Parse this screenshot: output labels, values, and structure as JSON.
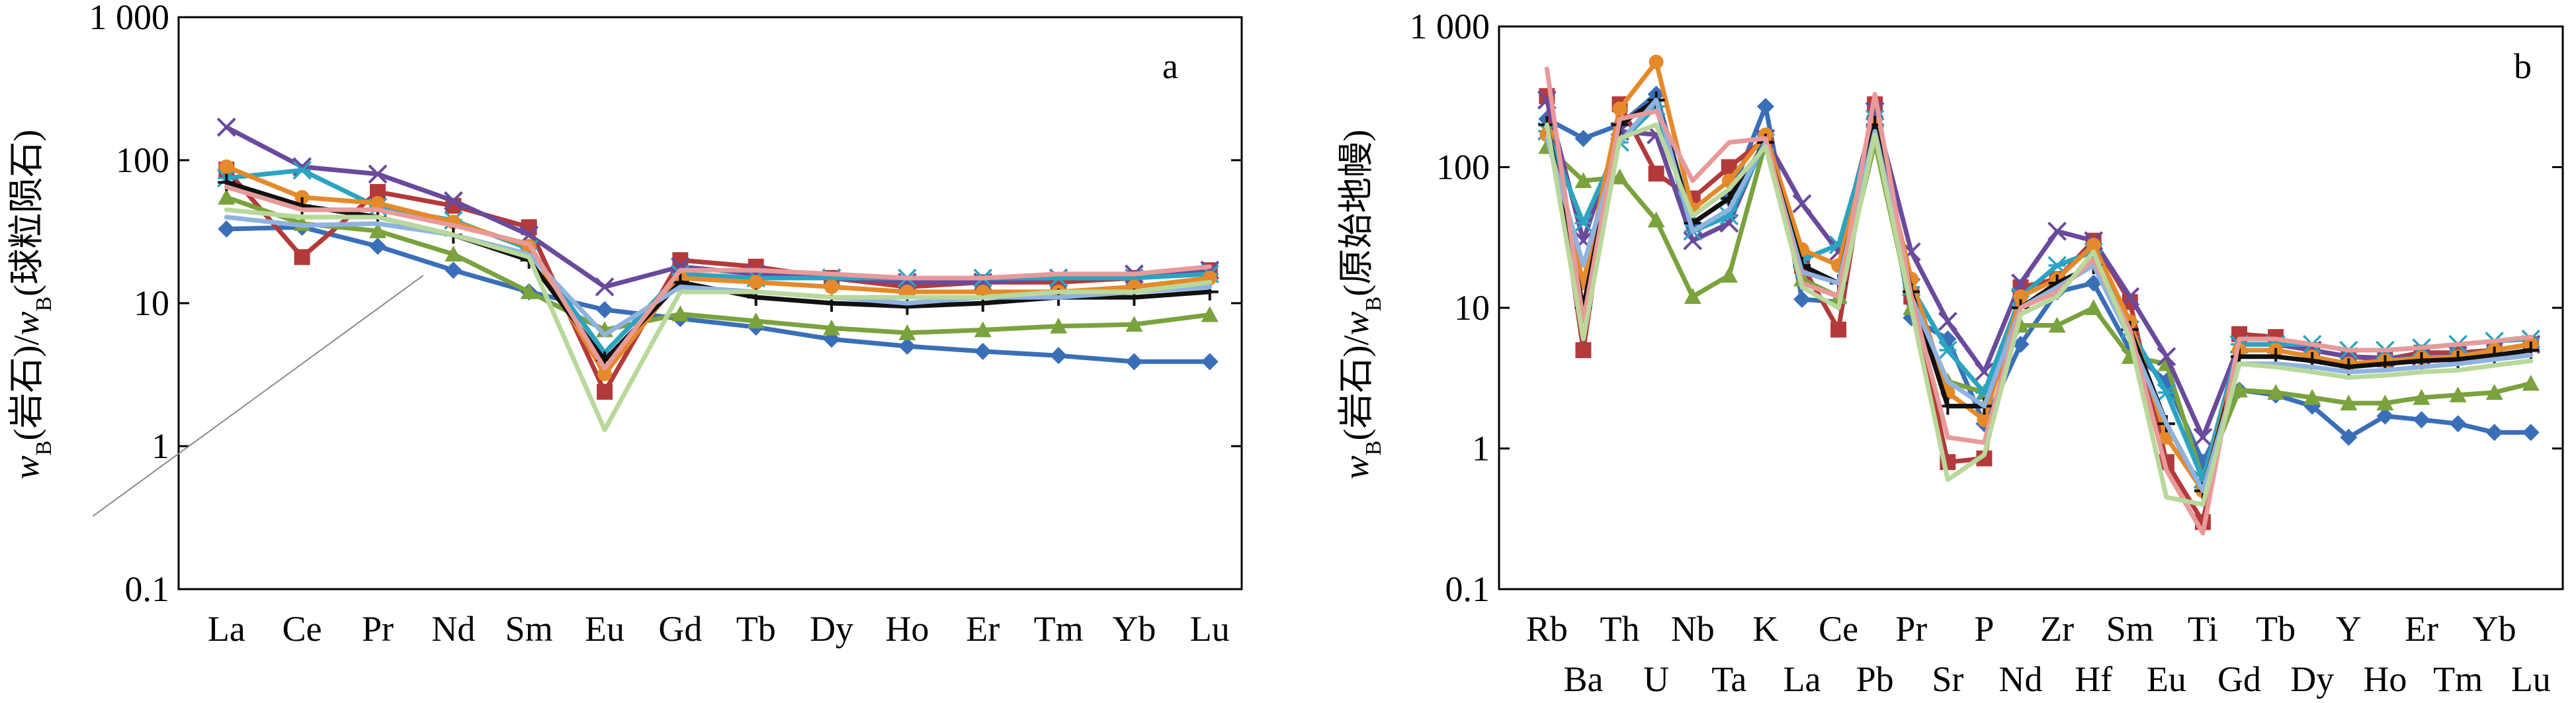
{
  "chart_data": [
    {
      "type": "line",
      "panel": "a",
      "title": "",
      "xlabel": "",
      "ylabel": "w(岩石)/w(球粒陨石)",
      "ylabel_parts": {
        "w1": "w",
        "s1": "B",
        "t1": "(岩石)/",
        "w2": "w",
        "s2": "B",
        "t2": "(球粒陨石)"
      },
      "yscale": "log",
      "ylim": [
        0.1,
        1000
      ],
      "yticks": [
        "0.1",
        "1",
        "10",
        "100",
        "1 000"
      ],
      "categories": [
        "La",
        "Ce",
        "Pr",
        "Nd",
        "Sm",
        "Eu",
        "Gd",
        "Tb",
        "Dy",
        "Ho",
        "Er",
        "Tm",
        "Yb",
        "Lu"
      ],
      "series": [
        {
          "name": "s1",
          "color": "#3a6fb7",
          "marker": "diamond",
          "values": [
            33,
            34,
            25,
            17,
            12,
            9,
            7.8,
            6.8,
            5.6,
            5,
            4.6,
            4.3,
            3.9,
            3.9
          ]
        },
        {
          "name": "s2",
          "color": "#b33a3a",
          "marker": "square",
          "values": [
            86,
            21,
            60,
            48,
            34,
            2.4,
            20,
            18,
            15,
            13,
            14,
            14,
            15,
            17
          ]
        },
        {
          "name": "s3",
          "color": "#7aa23d",
          "marker": "triangle",
          "values": [
            55,
            36,
            32,
            22,
            12,
            6.5,
            8.4,
            7.5,
            6.7,
            6.2,
            6.5,
            6.9,
            7.1,
            8.3
          ]
        },
        {
          "name": "s4",
          "color": "#6a4a9c",
          "marker": "x",
          "values": [
            170,
            90,
            80,
            52,
            30,
            13,
            18,
            16,
            15,
            14,
            14,
            15,
            16,
            17
          ]
        },
        {
          "name": "s5",
          "color": "#2aa4c0",
          "marker": "asterisk",
          "values": [
            75,
            85,
            47,
            38,
            24,
            4.5,
            16,
            15,
            15,
            15,
            15,
            15,
            15,
            16
          ]
        },
        {
          "name": "s6",
          "color": "#e58a2a",
          "marker": "circle",
          "values": [
            90,
            55,
            50,
            37,
            25,
            3.2,
            15,
            14,
            13,
            12,
            12,
            12,
            13,
            15
          ]
        },
        {
          "name": "s7",
          "color": "#111111",
          "marker": "plus",
          "values": [
            70,
            48,
            40,
            30,
            20,
            4,
            14,
            11,
            10,
            9.5,
            10,
            11,
            11,
            12
          ]
        },
        {
          "name": "s8",
          "color": "#8fb3e0",
          "marker": "line",
          "values": [
            40,
            35,
            36,
            30,
            22,
            6,
            13,
            12,
            11,
            10,
            11,
            11,
            12,
            13
          ]
        },
        {
          "name": "s9",
          "color": "#e89a9a",
          "marker": "line",
          "values": [
            65,
            45,
            45,
            35,
            26,
            3.5,
            17,
            17,
            16,
            15,
            15,
            16,
            16,
            18
          ]
        },
        {
          "name": "s10",
          "color": "#b9d89b",
          "marker": "line",
          "values": [
            45,
            40,
            40,
            30,
            21,
            1.3,
            12,
            12,
            11,
            11,
            11,
            12,
            12,
            14
          ]
        }
      ]
    },
    {
      "type": "line",
      "panel": "b",
      "title": "",
      "xlabel": "",
      "ylabel": "w(岩石)/w(原始地幔)",
      "ylabel_parts": {
        "w1": "w",
        "s1": "B",
        "t1": "(岩石)/",
        "w2": "w",
        "s2": "B",
        "t2": "(原始地幔)"
      },
      "yscale": "log",
      "ylim": [
        0.1,
        1000
      ],
      "yticks": [
        "0.1",
        "1",
        "10",
        "100",
        "1 000"
      ],
      "categories": [
        "Rb",
        "Ba",
        "Th",
        "U",
        "Nb",
        "Ta",
        "K",
        "La",
        "Ce",
        "Pb",
        "Pr",
        "Sr",
        "P",
        "Nd",
        "Zr",
        "Hf",
        "Sm",
        "Eu",
        "Ti",
        "Gd",
        "Tb",
        "Dy",
        "Y",
        "Ho",
        "Er",
        "Tm",
        "Yb",
        "Lu"
      ],
      "series": [
        {
          "name": "s1",
          "color": "#3a6fb7",
          "marker": "diamond",
          "values": [
            220,
            160,
            200,
            330,
            40,
            60,
            270,
            11.5,
            11,
            230,
            8.5,
            6,
            1.5,
            5.5,
            13,
            15,
            5,
            3,
            0.8,
            2.6,
            2.4,
            2,
            1.2,
            1.7,
            1.6,
            1.5,
            1.3,
            1.3
          ]
        },
        {
          "name": "s2",
          "color": "#b33a3a",
          "marker": "square",
          "values": [
            320,
            5,
            280,
            90,
            60,
            100,
            160,
            20,
            7,
            280,
            12,
            0.8,
            0.85,
            14,
            16,
            30,
            11,
            0.8,
            0.3,
            6.5,
            6.2,
            5,
            4.5,
            4.3,
            4.8,
            4.8,
            5,
            5.5
          ]
        },
        {
          "name": "s3",
          "color": "#7aa23d",
          "marker": "triangle",
          "values": [
            140,
            80,
            85,
            42,
            12,
            17,
            150,
            16,
            12,
            150,
            10,
            3,
            2.5,
            7.5,
            7.5,
            10,
            4.5,
            4,
            0.6,
            2.6,
            2.5,
            2.3,
            2.1,
            2.1,
            2.3,
            2.4,
            2.5,
            2.9
          ]
        },
        {
          "name": "s4",
          "color": "#6a4a9c",
          "marker": "x",
          "values": [
            300,
            30,
            180,
            170,
            30,
            40,
            160,
            55,
            25,
            250,
            25,
            8,
            3.5,
            15,
            35,
            30,
            12,
            4.5,
            1.2,
            5.5,
            5.5,
            5,
            4.5,
            4.4,
            4.5,
            4.6,
            5,
            5.5
          ]
        },
        {
          "name": "s5",
          "color": "#2aa4c0",
          "marker": "asterisk",
          "values": [
            180,
            40,
            150,
            270,
            35,
            45,
            150,
            22,
            28,
            220,
            14,
            5,
            2.5,
            12,
            20,
            25,
            7,
            2.5,
            0.6,
            5.5,
            5.5,
            5.5,
            5,
            5,
            5.2,
            5.5,
            5.8,
            6
          ]
        },
        {
          "name": "s6",
          "color": "#e58a2a",
          "marker": "circle",
          "values": [
            170,
            15,
            260,
            560,
            50,
            80,
            170,
            26,
            20,
            200,
            16,
            2.5,
            1.6,
            12,
            16,
            28,
            8,
            1.2,
            0.5,
            5,
            5,
            4.5,
            4,
            4.2,
            4.4,
            4.5,
            5,
            5.5
          ]
        },
        {
          "name": "s7",
          "color": "#111111",
          "marker": "plus",
          "values": [
            200,
            10,
            200,
            300,
            40,
            60,
            150,
            20,
            15,
            200,
            13,
            2,
            2,
            10,
            15,
            20,
            7,
            1.5,
            0.5,
            4.5,
            4.5,
            4.2,
            3.8,
            4,
            4.2,
            4.3,
            4.6,
            5
          ]
        },
        {
          "name": "s8",
          "color": "#8fb3e0",
          "marker": "line",
          "values": [
            160,
            20,
            150,
            300,
            35,
            50,
            150,
            18,
            15,
            180,
            12,
            3,
            2,
            10,
            14,
            20,
            6,
            1.5,
            0.5,
            4,
            4,
            3.8,
            3.5,
            3.6,
            3.8,
            4,
            4.3,
            4.6
          ]
        },
        {
          "name": "s9",
          "color": "#e89a9a",
          "marker": "line",
          "values": [
            500,
            8,
            220,
            250,
            80,
            150,
            160,
            15,
            12,
            330,
            12,
            1.2,
            1.1,
            10,
            13,
            22,
            7,
            0.7,
            0.25,
            6,
            6,
            5.5,
            5,
            5,
            5.2,
            5.5,
            5.8,
            6.2
          ]
        },
        {
          "name": "s10",
          "color": "#b9d89b",
          "marker": "line",
          "values": [
            200,
            6,
            160,
            200,
            45,
            70,
            140,
            14,
            10,
            170,
            10,
            0.6,
            0.9,
            9,
            12,
            25,
            6,
            0.45,
            0.4,
            4,
            3.8,
            3.5,
            3.2,
            3.3,
            3.5,
            3.6,
            3.9,
            4.2
          ]
        }
      ]
    }
  ]
}
